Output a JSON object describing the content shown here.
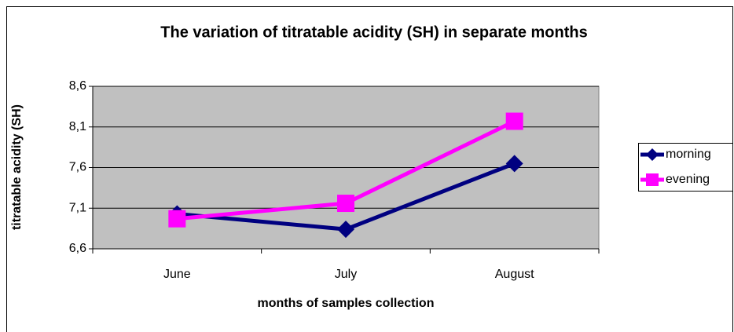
{
  "chart_data": {
    "type": "line",
    "title": "The variation of titratable acidity (SH) in separate months",
    "x_label": "months of samples collection",
    "y_label": "titratable acidity (SH)",
    "categories": [
      "June",
      "July",
      "August"
    ],
    "series": [
      {
        "name": "morning",
        "color": "#000080",
        "marker": "diamond",
        "values": [
          7.03,
          6.84,
          7.65
        ]
      },
      {
        "name": "evening",
        "color": "#ff00ff",
        "marker": "square",
        "values": [
          6.97,
          7.16,
          8.17
        ]
      }
    ],
    "ylim": [
      6.6,
      8.6
    ],
    "yticks": [
      {
        "value": 6.6,
        "label": "6,6"
      },
      {
        "value": 7.1,
        "label": "7,1"
      },
      {
        "value": 7.6,
        "label": "7,6"
      },
      {
        "value": 8.1,
        "label": "8,1"
      },
      {
        "value": 8.6,
        "label": "8,6"
      }
    ],
    "grid": true,
    "legend": "right"
  }
}
